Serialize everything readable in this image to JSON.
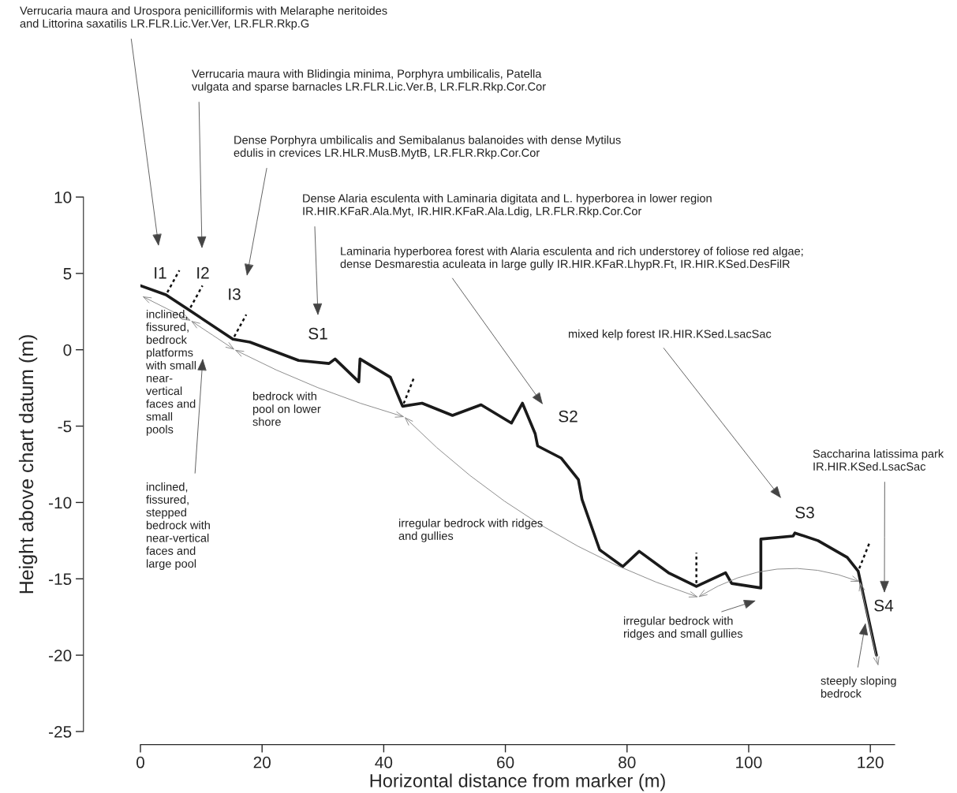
{
  "chart_data": {
    "type": "line",
    "xlabel": "Horizontal distance from marker (m)",
    "ylabel": "Height above chart datum (m)",
    "x": [
      0,
      4.2,
      8.0,
      15.2,
      18.0,
      26.0,
      31.0,
      32.0,
      35.9,
      36.1,
      41.1,
      43.1,
      46.3,
      51.3,
      56.0,
      61.0,
      62.8,
      64.9,
      65.3,
      69.2,
      72.0,
      72.6,
      75.5,
      79.3,
      82.0,
      86.8,
      91.4,
      96.2,
      97.2,
      102.0,
      102.0,
      107.3,
      107.6,
      111.4,
      116.2,
      118.0,
      121.0
    ],
    "series": [
      {
        "color": "#1a1a1a",
        "values": [
          4.2,
          3.6,
          2.6,
          0.7,
          0.5,
          -0.7,
          -0.9,
          -0.6,
          -2.1,
          -0.6,
          -1.8,
          -3.7,
          -3.5,
          -4.3,
          -3.6,
          -4.8,
          -3.5,
          -5.5,
          -6.3,
          -7.1,
          -8.5,
          -9.8,
          -13.1,
          -14.2,
          -13.2,
          -14.6,
          -15.5,
          -14.6,
          -15.3,
          -15.6,
          -12.4,
          -12.2,
          -12.0,
          -12.5,
          -13.6,
          -14.5,
          -20.0
        ]
      }
    ],
    "xlim": [
      0,
      124
    ],
    "ylim": [
      -25,
      10
    ],
    "xticks": [
      0,
      20,
      40,
      60,
      80,
      100,
      120
    ],
    "yticks": [
      10,
      5,
      0,
      -5,
      -10,
      -15,
      -20,
      -25
    ],
    "grid": false,
    "marker": "none",
    "line_style": "solid",
    "annotations": [
      "Verrucaria maura and Urospora penicilliformis with Melaraphe neritoides\nand Littorina saxatilis LR.FLR.Lic.Ver.Ver, LR.FLR.Rkp.G",
      "Verrucaria maura with Blidingia minima, Porphyra umbilicalis, Patella\nvulgata and sparse barnacles LR.FLR.Lic.Ver.B, LR.FLR.Rkp.Cor.Cor",
      "Dense Porphyra umbilicalis and Semibalanus balanoides with dense Mytilus\nedulis in crevices LR.HLR.MusB.MytB, LR.FLR.Rkp.Cor.Cor",
      "Dense Alaria esculenta with Laminaria digitata and L. hyperborea in lower region\nIR.HIR.KFaR.Ala.Myt, IR.HIR.KFaR.Ala.Ldig, LR.FLR.Rkp.Cor.Cor",
      "Laminaria hyperborea forest with Alaria esculenta and rich understorey of foliose red algae;\ndense Desmarestia aculeata in large gully IR.HIR.KFaR.LhypR.Ft, IR.HIR.KSed.DesFilR",
      "mixed kelp forest IR.HIR.KSed.LsacSac",
      "Saccharina latissima park\nIR.HIR.KSed.LsacSac",
      "I1",
      "I2",
      "I3",
      "S1",
      "S2",
      "S3",
      "S4",
      "inclined,\nfissured,\nbedrock\nplatforms\nwith small\nnear-\nvertical\nfaces and\nsmall\npools",
      "inclined,\nfissured,\nstepped\nbedrock with\nnear-vertical\nfaces and\nlarge pool",
      "bedrock with\npool on lower\nshore",
      "irregular bedrock with ridges\nand gullies",
      "irregular bedrock with\nridges and small gullies",
      {
        "text": "steeply sloping\nbedrock",
        "x": 119.2,
        "y": -17.9
      }
    ]
  }
}
